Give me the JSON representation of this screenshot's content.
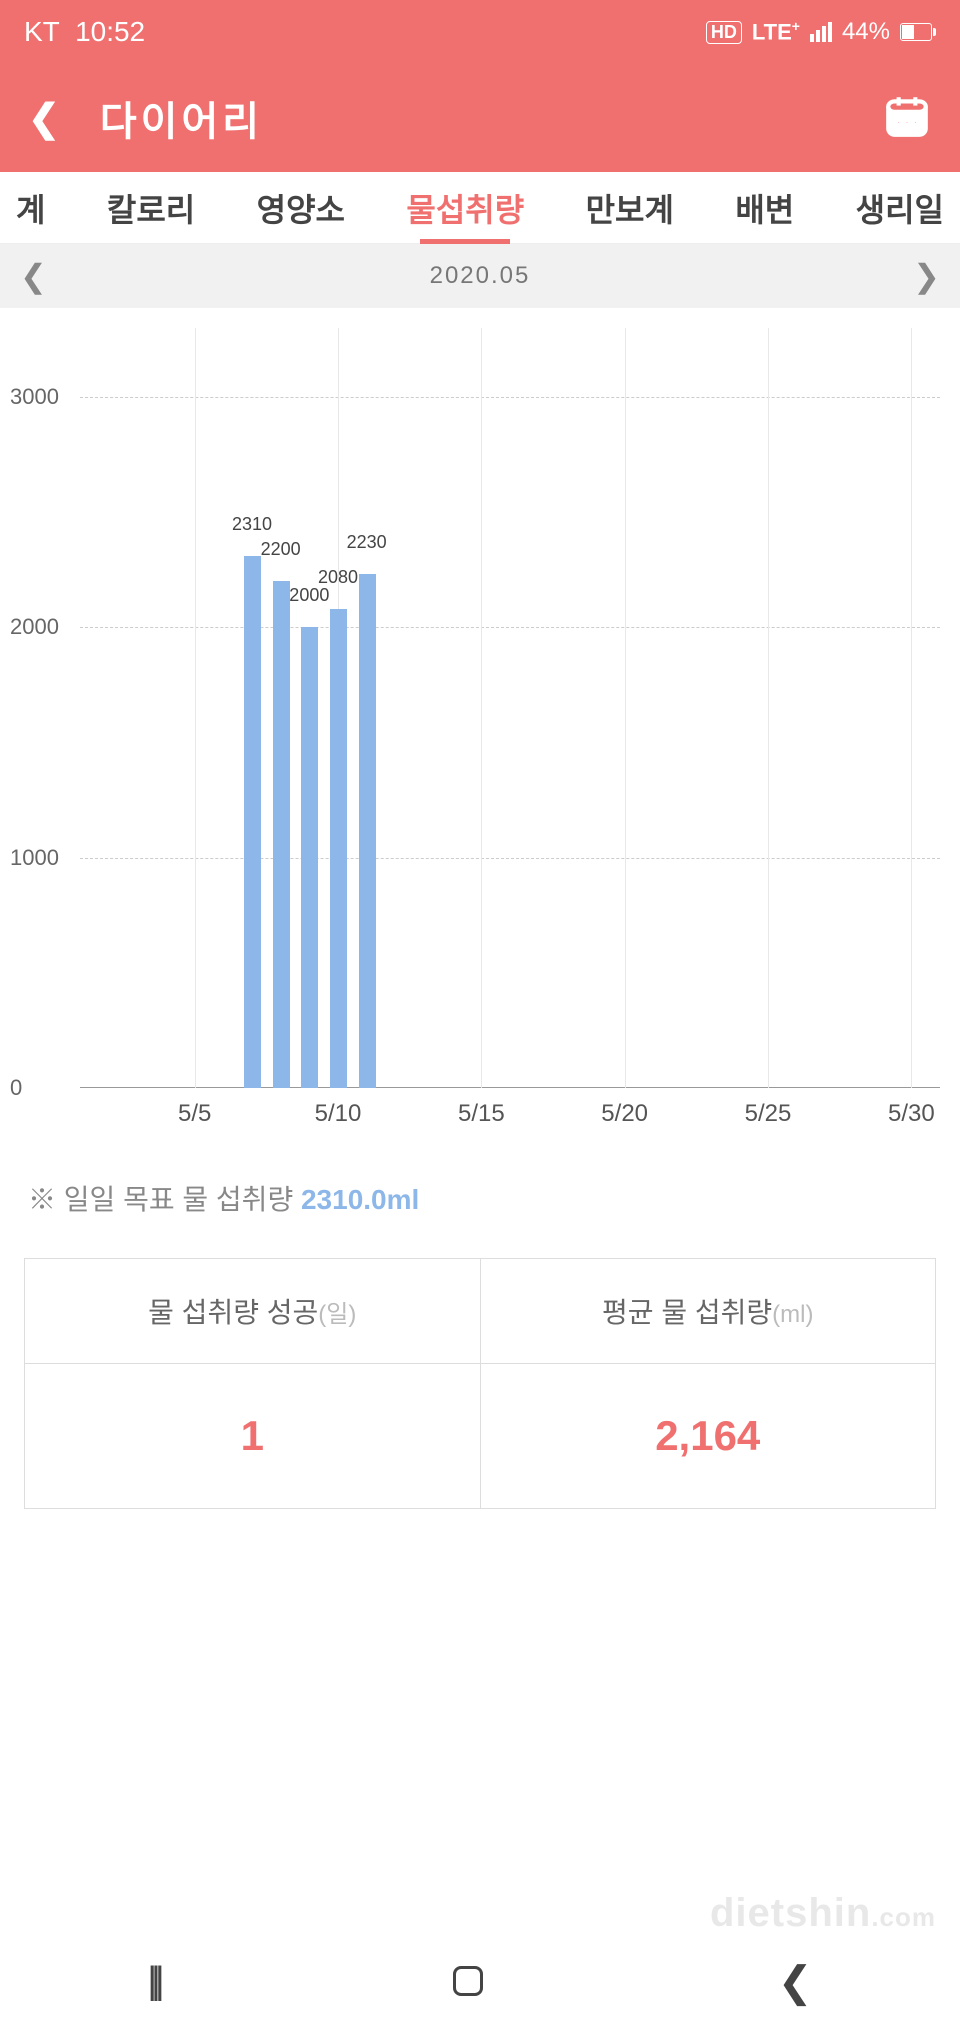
{
  "status": {
    "carrier": "KT",
    "time": "10:52",
    "hd": "HD",
    "lte": "LTE",
    "lte_plus": "+",
    "battery_pct": "44%"
  },
  "header": {
    "title": "다이어리"
  },
  "tabs": {
    "items": [
      "계",
      "칼로리",
      "영양소",
      "물섭취량",
      "만보계",
      "배변",
      "생리일"
    ],
    "active_index": 3
  },
  "date_nav": {
    "label": "2020.05"
  },
  "chart": {
    "type": "bar",
    "bar_color": "#8cb7e8",
    "grid_color": "#cccccc",
    "vgrid_color": "#e8e8e8",
    "text_color": "#555555",
    "label_fontsize": 18,
    "ylim": [
      0,
      3300
    ],
    "y_ticks": [
      0,
      1000,
      2000,
      3000
    ],
    "x_ticks": [
      "5/5",
      "5/10",
      "5/15",
      "5/20",
      "5/25",
      "5/30"
    ],
    "x_tick_days": [
      5,
      10,
      15,
      20,
      25,
      30
    ],
    "x_domain": [
      1,
      31
    ],
    "bars": [
      {
        "day": 7,
        "value": 2310,
        "label": "2310"
      },
      {
        "day": 8,
        "value": 2200,
        "label": "2200"
      },
      {
        "day": 9,
        "value": 2000,
        "label": "2000"
      },
      {
        "day": 10,
        "value": 2080,
        "label": "2080"
      },
      {
        "day": 11,
        "value": 2230,
        "label": "2230"
      }
    ]
  },
  "goal": {
    "prefix": "※ 일일 목표 물 섭취량 ",
    "value": "2310.0ml"
  },
  "stats": {
    "left_label": "물 섭취량 성공",
    "left_unit": "(일)",
    "right_label": "평균 물 섭취량",
    "right_unit": "(ml)",
    "left_value": "1",
    "right_value": "2,164"
  },
  "watermark": {
    "main": "dietshin",
    "suffix": ".com"
  }
}
